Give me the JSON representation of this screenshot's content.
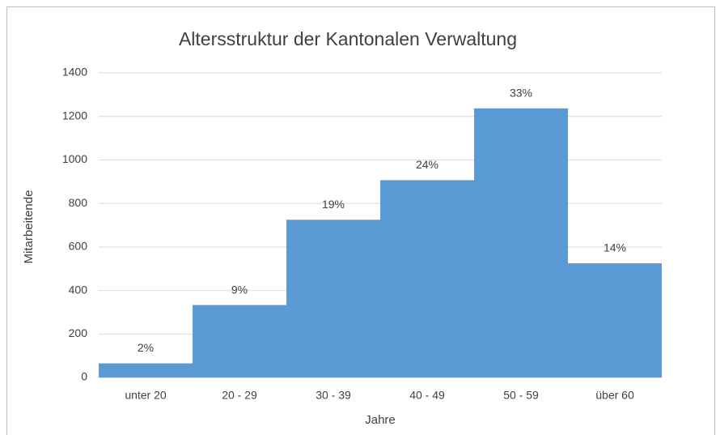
{
  "chart_data": {
    "type": "bar",
    "title": "Altersstruktur der Kantonalen Verwaltung",
    "x_label": "Jahre",
    "y_label": "Mitarbeitende",
    "categories": [
      "unter 20",
      "20 - 29",
      "30 - 39",
      "40 - 49",
      "50 - 59",
      "über 60"
    ],
    "values": [
      65,
      333,
      725,
      907,
      1237,
      525
    ],
    "percent_labels": [
      "2%",
      "9%",
      "19%",
      "24%",
      "33%",
      "14%"
    ],
    "color": "#5b9bd5",
    "ylim": [
      0,
      1400
    ],
    "yticks": [
      0,
      200,
      400,
      600,
      800,
      1000,
      1200,
      1400
    ],
    "grid": true
  }
}
